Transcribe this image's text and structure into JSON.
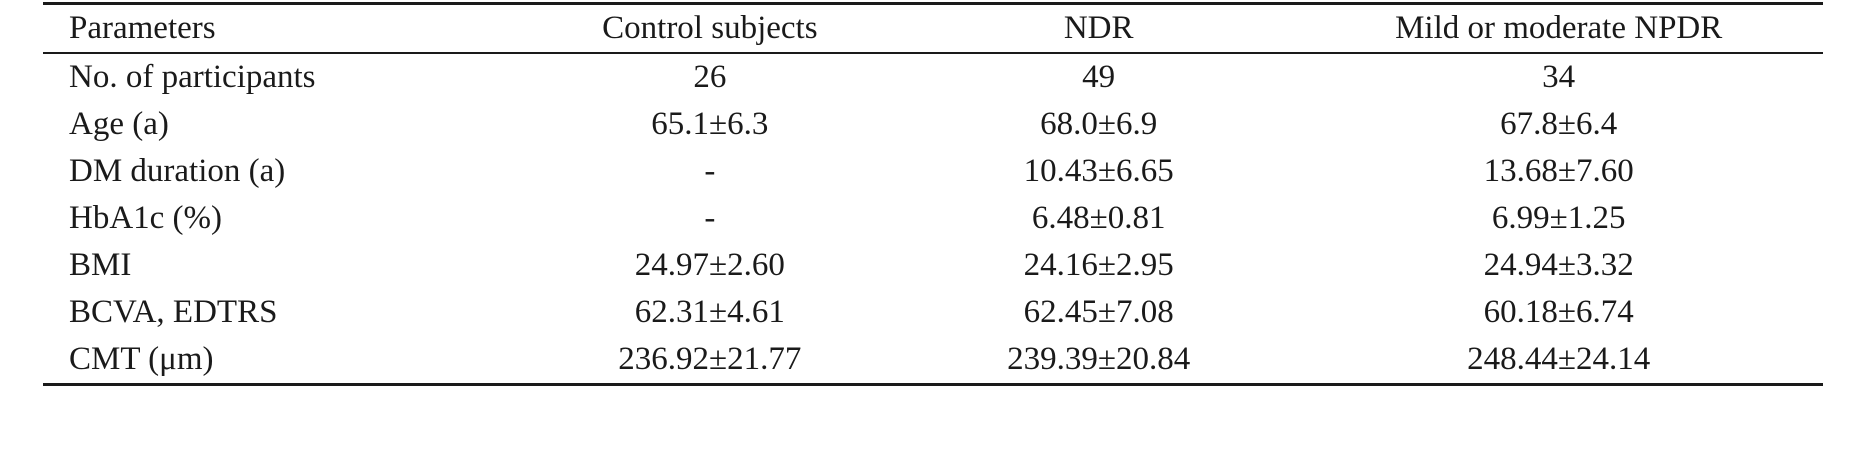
{
  "table": {
    "headers": [
      "Parameters",
      "Control subjects",
      "NDR",
      "Mild or moderate NPDR"
    ],
    "rows": [
      [
        "No. of participants",
        "26",
        "49",
        "34"
      ],
      [
        "Age (a)",
        "65.1±6.3",
        "68.0±6.9",
        "67.8±6.4"
      ],
      [
        "DM duration (a)",
        "-",
        "10.43±6.65",
        "13.68±7.60"
      ],
      [
        "HbA1c (%)",
        "-",
        "6.48±0.81",
        "6.99±1.25"
      ],
      [
        "BMI",
        "24.97±2.60",
        "24.16±2.95",
        "24.94±3.32"
      ],
      [
        "BCVA, EDTRS",
        "62.31±4.61",
        "62.45±7.08",
        "60.18±6.74"
      ],
      [
        "CMT (μm)",
        "236.92±21.77",
        "239.39±20.84",
        "248.44±24.14"
      ]
    ]
  }
}
